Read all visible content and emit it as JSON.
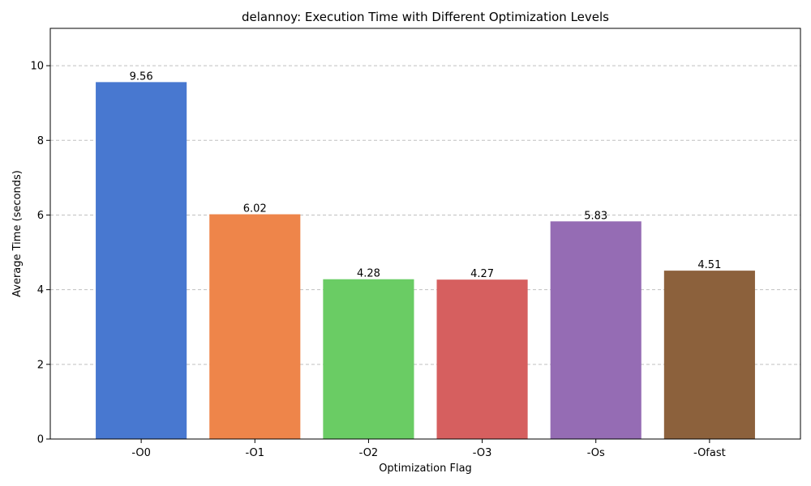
{
  "chart_data": {
    "type": "bar",
    "title": "delannoy: Execution Time with Different Optimization Levels",
    "xlabel": "Optimization Flag",
    "ylabel": "Average Time (seconds)",
    "categories": [
      "-O0",
      "-O1",
      "-O2",
      "-O3",
      "-Os",
      "-Ofast"
    ],
    "values": [
      9.56,
      6.02,
      4.28,
      4.27,
      5.83,
      4.51
    ],
    "value_labels": [
      "9.56",
      "6.02",
      "4.28",
      "4.27",
      "5.83",
      "4.51"
    ],
    "colors": [
      "#4878d0",
      "#ee854a",
      "#6acc64",
      "#d65f5f",
      "#956cb4",
      "#8c613c"
    ],
    "ylim": [
      0,
      11
    ],
    "yticks": [
      0,
      2,
      4,
      6,
      8,
      10
    ],
    "grid": {
      "y": true,
      "style": "dashed",
      "color": "#c0c0c0"
    },
    "legend": "none"
  }
}
